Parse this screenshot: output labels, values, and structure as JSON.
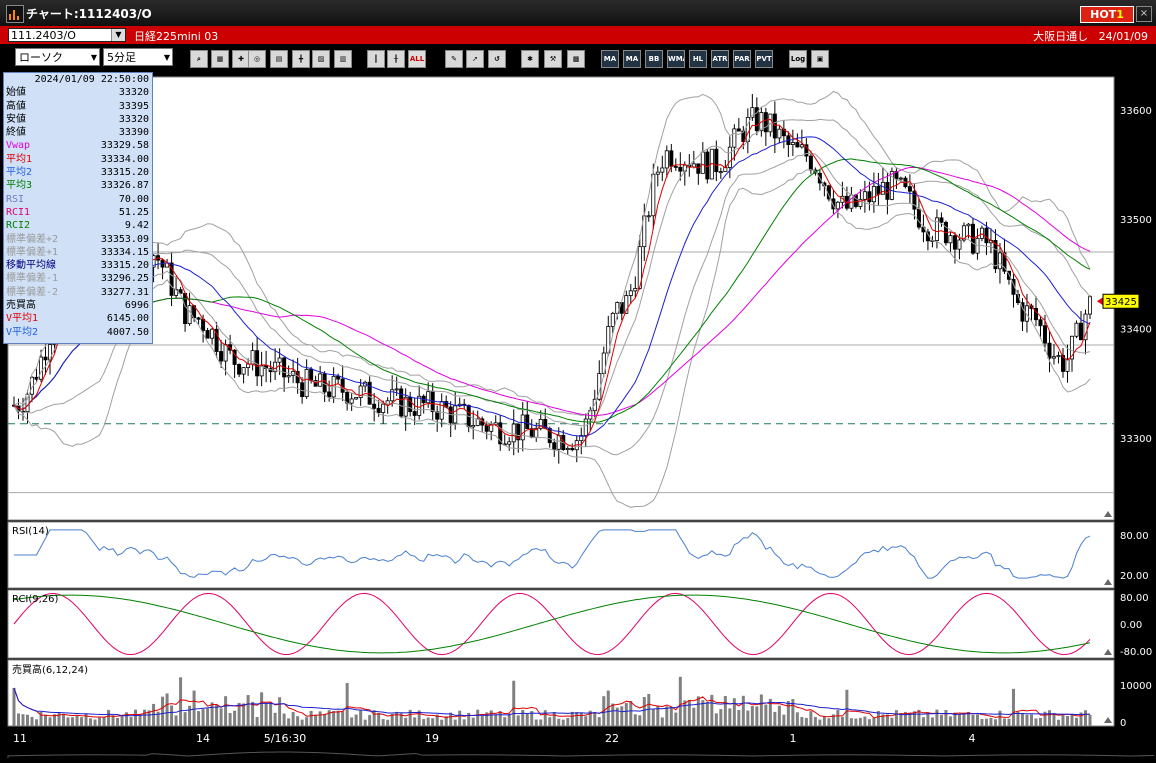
{
  "window": {
    "title": "チャート:1112403/O",
    "hot_label": "HOT",
    "hot_num": "1",
    "close_label": "×"
  },
  "header": {
    "symbol": "111.2403/O",
    "instrument": "日経225mini 03",
    "market": "大阪日通し",
    "date": "24/01/09"
  },
  "toolbar": {
    "chart_type": "ローソク",
    "interval": "5分足",
    "buttons": [
      "search",
      "fit",
      "cross",
      "zoom",
      "pan",
      "ruler",
      "line",
      "disabled",
      "candle",
      "bar",
      "ALL",
      "pen",
      "arrow",
      "reset",
      "gear",
      "tool",
      "palette",
      "MA",
      "MA",
      "BB",
      "WMA",
      "HL",
      "ATR",
      "PAR",
      "PVT",
      "Log",
      "mark"
    ]
  },
  "data_panel": {
    "datetime": "2024/01/09 22:50:00",
    "rows": [
      {
        "label": "始値",
        "value": "33320",
        "color": "#000000"
      },
      {
        "label": "高値",
        "value": "33395",
        "color": "#000000"
      },
      {
        "label": "安値",
        "value": "33320",
        "color": "#000000"
      },
      {
        "label": "終値",
        "value": "33390",
        "color": "#000000"
      },
      {
        "label": "Vwap",
        "value": "33329.58",
        "color": "#e000e0"
      },
      {
        "label": "平均1",
        "value": "33334.00",
        "color": "#e00000"
      },
      {
        "label": "平均2",
        "value": "33315.20",
        "color": "#2060e0"
      },
      {
        "label": "平均3",
        "value": "33326.87",
        "color": "#008000"
      },
      {
        "label": "RSI",
        "value": "70.00",
        "color": "#7080c0"
      },
      {
        "label": "RCI1",
        "value": "51.25",
        "color": "#e00070"
      },
      {
        "label": "RCI2",
        "value": "9.42",
        "color": "#008000"
      },
      {
        "label": "標準偏差+2",
        "value": "33353.09",
        "color": "#9a9a9a"
      },
      {
        "label": "標準偏差+1",
        "value": "33334.15",
        "color": "#9a9a9a"
      },
      {
        "label": "移動平均線",
        "value": "33315.20",
        "color": "#000080"
      },
      {
        "label": "標準偏差-1",
        "value": "33296.25",
        "color": "#9a9a9a"
      },
      {
        "label": "標準偏差-2",
        "value": "33277.31",
        "color": "#9a9a9a"
      },
      {
        "label": "売買高",
        "value": "6996",
        "color": "#000000"
      },
      {
        "label": "V平均1",
        "value": "6145.00",
        "color": "#e00000"
      },
      {
        "label": "V平均2",
        "value": "4007.50",
        "color": "#2060e0"
      }
    ]
  },
  "price_axis": {
    "ticks": [
      "33600",
      "33500",
      "33400",
      "33300"
    ],
    "current_price": "33425"
  },
  "rsi_panel": {
    "label": "RSI(14)",
    "ticks": [
      "80.00",
      "20.00"
    ]
  },
  "rci_panel": {
    "label": "RCI(9,26)",
    "ticks": [
      "80.00",
      "0.00",
      "-80.00"
    ]
  },
  "volume_panel": {
    "label": "売買高(6,12,24)",
    "ticks": [
      "10000",
      "0"
    ]
  },
  "time_axis": {
    "labels": [
      "11",
      "14",
      "5/16:30",
      "19",
      "22",
      "1",
      "4"
    ]
  },
  "colors": {
    "chart_bg": "#ffffff",
    "candle": "#000000",
    "ma_short": "#e00000",
    "ma_mid": "#1a20d0",
    "ma_long": "#008000",
    "vwap": "#e000e0",
    "bollinger": "#a0a0a0",
    "rsi": "#4a7fd0",
    "rci_short": "#e0006a",
    "rci_long": "#008000",
    "volume": "#808080"
  }
}
